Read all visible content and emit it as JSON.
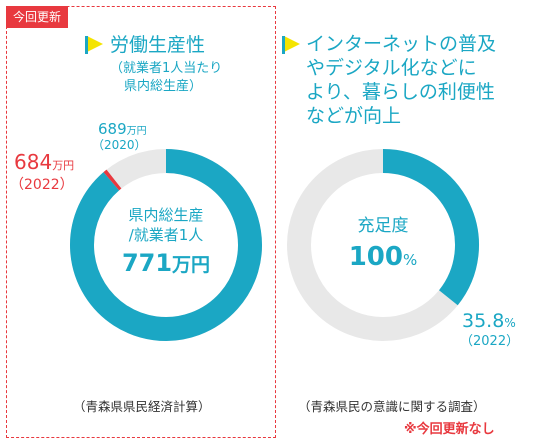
{
  "colors": {
    "accent": "#1ba7c4",
    "red": "#e8393f",
    "ring_bg": "#e8e8e8",
    "flag_yellow": "#f4e400",
    "flag_teal": "#1ba7c4"
  },
  "left": {
    "badge": "今回更新",
    "title": "労働生産性",
    "subtitle_lines": [
      "（就業者1人当たり",
      "県内総生産）"
    ],
    "center_lines": [
      "県内総生産",
      "/就業者1人"
    ],
    "center_value": "771",
    "center_unit": "万円",
    "label_2020_value": "689",
    "label_2020_unit": "万円",
    "label_2020_year": "（2020）",
    "label_2022_value": "684",
    "label_2022_unit": "万円",
    "label_2022_year": "（2022）",
    "source": "（青森県県民経済計算）"
  },
  "right": {
    "title_lines": [
      "インターネットの普及",
      "やデジタル化などに",
      "より、暮らしの利便性",
      "などが向上"
    ],
    "center_label": "充足度",
    "center_value": "100",
    "center_unit": "%",
    "value_label": "35.8",
    "value_unit": "%",
    "value_year": "（2022）",
    "source": "（青森県民の意識に関する調査）",
    "note": "※今回更新なし"
  },
  "chart_data": [
    {
      "type": "pie",
      "subtype": "donut",
      "target": 771,
      "unit": "万円",
      "values": [
        {
          "name": "2022",
          "value": 684
        },
        {
          "name": "2020",
          "value": 689
        }
      ]
    },
    {
      "type": "pie",
      "subtype": "donut",
      "target": 100,
      "unit": "%",
      "values": [
        {
          "name": "2022",
          "value": 35.8
        }
      ]
    }
  ]
}
